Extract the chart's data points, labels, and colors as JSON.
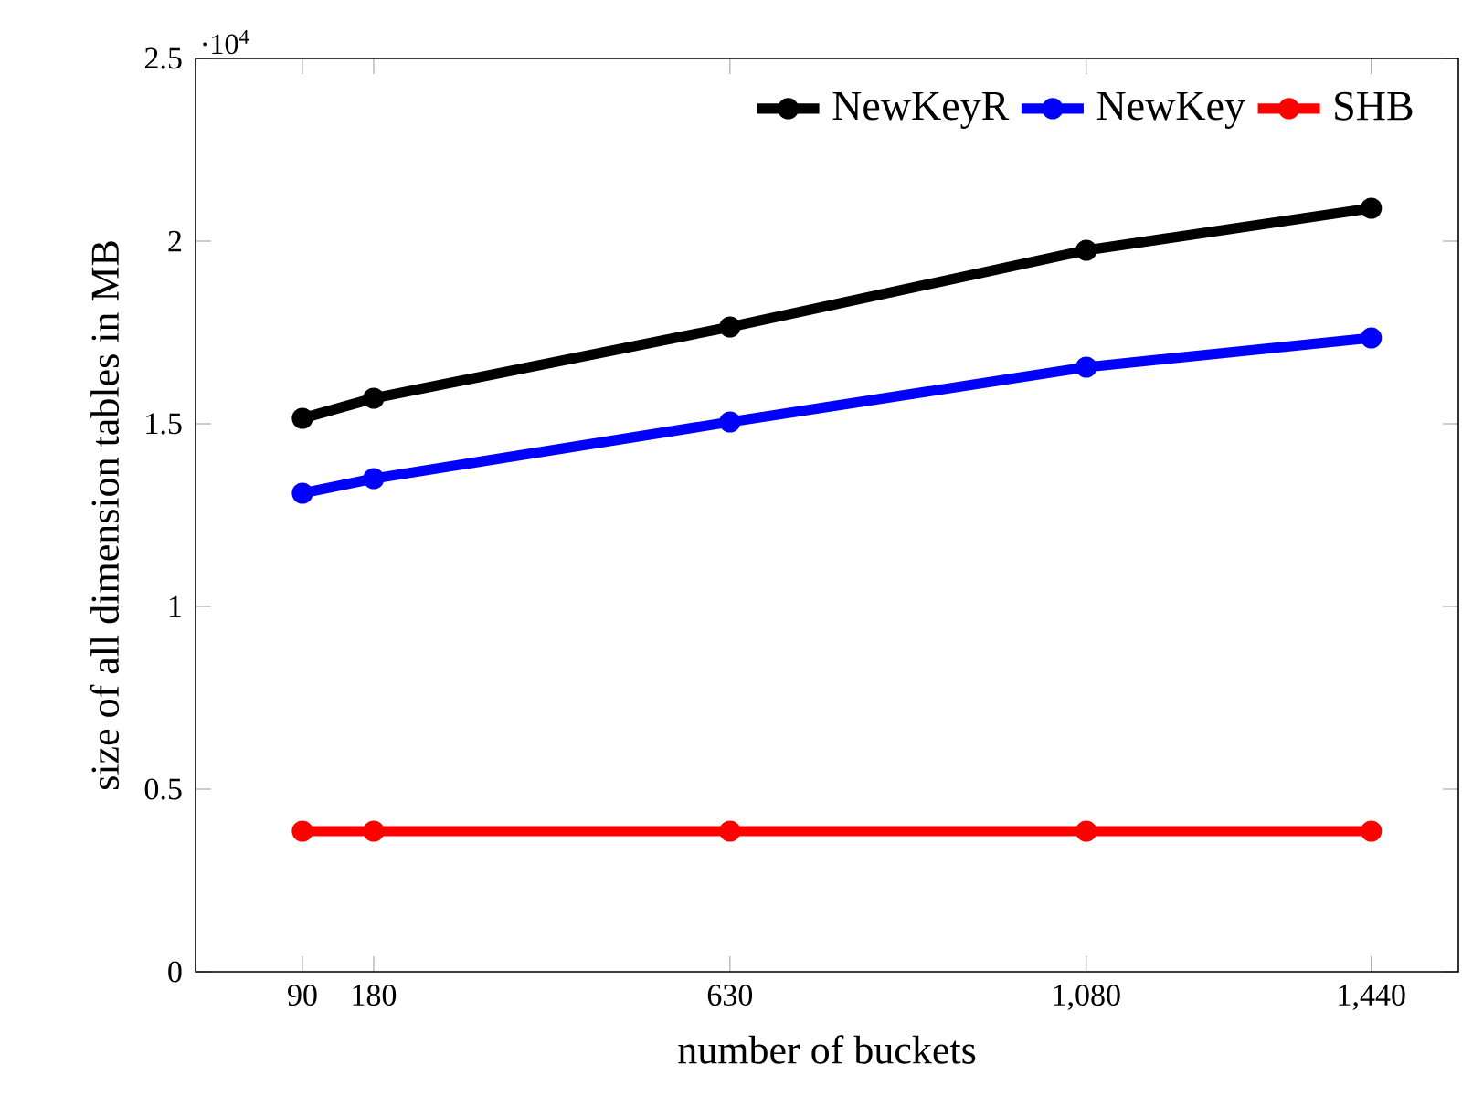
{
  "chart_data": {
    "type": "line",
    "xlabel": "number of buckets",
    "ylabel": "size of all dimension tables in MB",
    "x": [
      90,
      180,
      630,
      1080,
      1440
    ],
    "series": [
      {
        "name": "NewKeyR",
        "color": "#000000",
        "values": [
          1.515,
          1.57,
          1.765,
          1.975,
          2.09
        ]
      },
      {
        "name": "NewKey",
        "color": "#0000ff",
        "values": [
          1.31,
          1.35,
          1.505,
          1.655,
          1.735
        ]
      },
      {
        "name": "SHB",
        "color": "#ff0000",
        "values": [
          0.385,
          0.385,
          0.385,
          0.385,
          0.385
        ]
      }
    ],
    "xlim": [
      -45,
      1550
    ],
    "ylim": [
      0,
      2.5
    ],
    "xticks": [
      90,
      180,
      630,
      {
        "value": 1080,
        "label": "1,080"
      },
      {
        "value": 1440,
        "label": "1,440"
      }
    ],
    "yticks": [
      0,
      0.5,
      1,
      1.5,
      2,
      2.5
    ],
    "annotations": [
      "·10$^{4}$"
    ],
    "legend": "top right",
    "marker": "circle",
    "line_style": "solid",
    "grid": false
  }
}
